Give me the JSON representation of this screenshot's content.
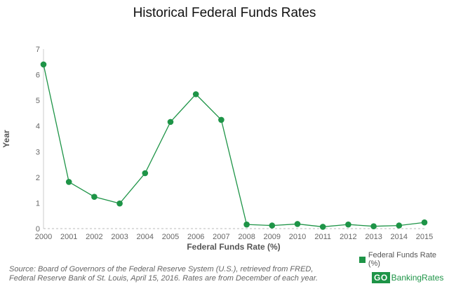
{
  "chart_data": {
    "type": "line",
    "title": "Historical Federal Funds Rates",
    "xlabel": "Federal Funds Rate (%)",
    "ylabel": "Year",
    "categories": [
      "2000",
      "2001",
      "2002",
      "2003",
      "2004",
      "2005",
      "2006",
      "2007",
      "2008",
      "2009",
      "2010",
      "2011",
      "2012",
      "2013",
      "2014",
      "2015"
    ],
    "series": [
      {
        "name": "Federal Funds Rate (%)",
        "values": [
          6.4,
          1.82,
          1.24,
          0.98,
          2.16,
          4.16,
          5.24,
          4.24,
          0.16,
          0.12,
          0.18,
          0.07,
          0.16,
          0.09,
          0.12,
          0.24
        ]
      }
    ],
    "ylim": [
      0,
      7
    ],
    "yticks": [
      0,
      1,
      2,
      3,
      4,
      5,
      6,
      7
    ],
    "grid": false,
    "legend_position": "bottom-right",
    "color": "#1e9447"
  },
  "footer": {
    "source": "Source: Board of Governors of the Federal Reserve System (U.S.), retrieved from FRED, Federal Reserve Bank of St. Louis, April 15, 2016. Rates are from December of each year.",
    "brand_box": "GO",
    "brand_text": "BankingRates",
    "brand_color": "#1e9447"
  }
}
